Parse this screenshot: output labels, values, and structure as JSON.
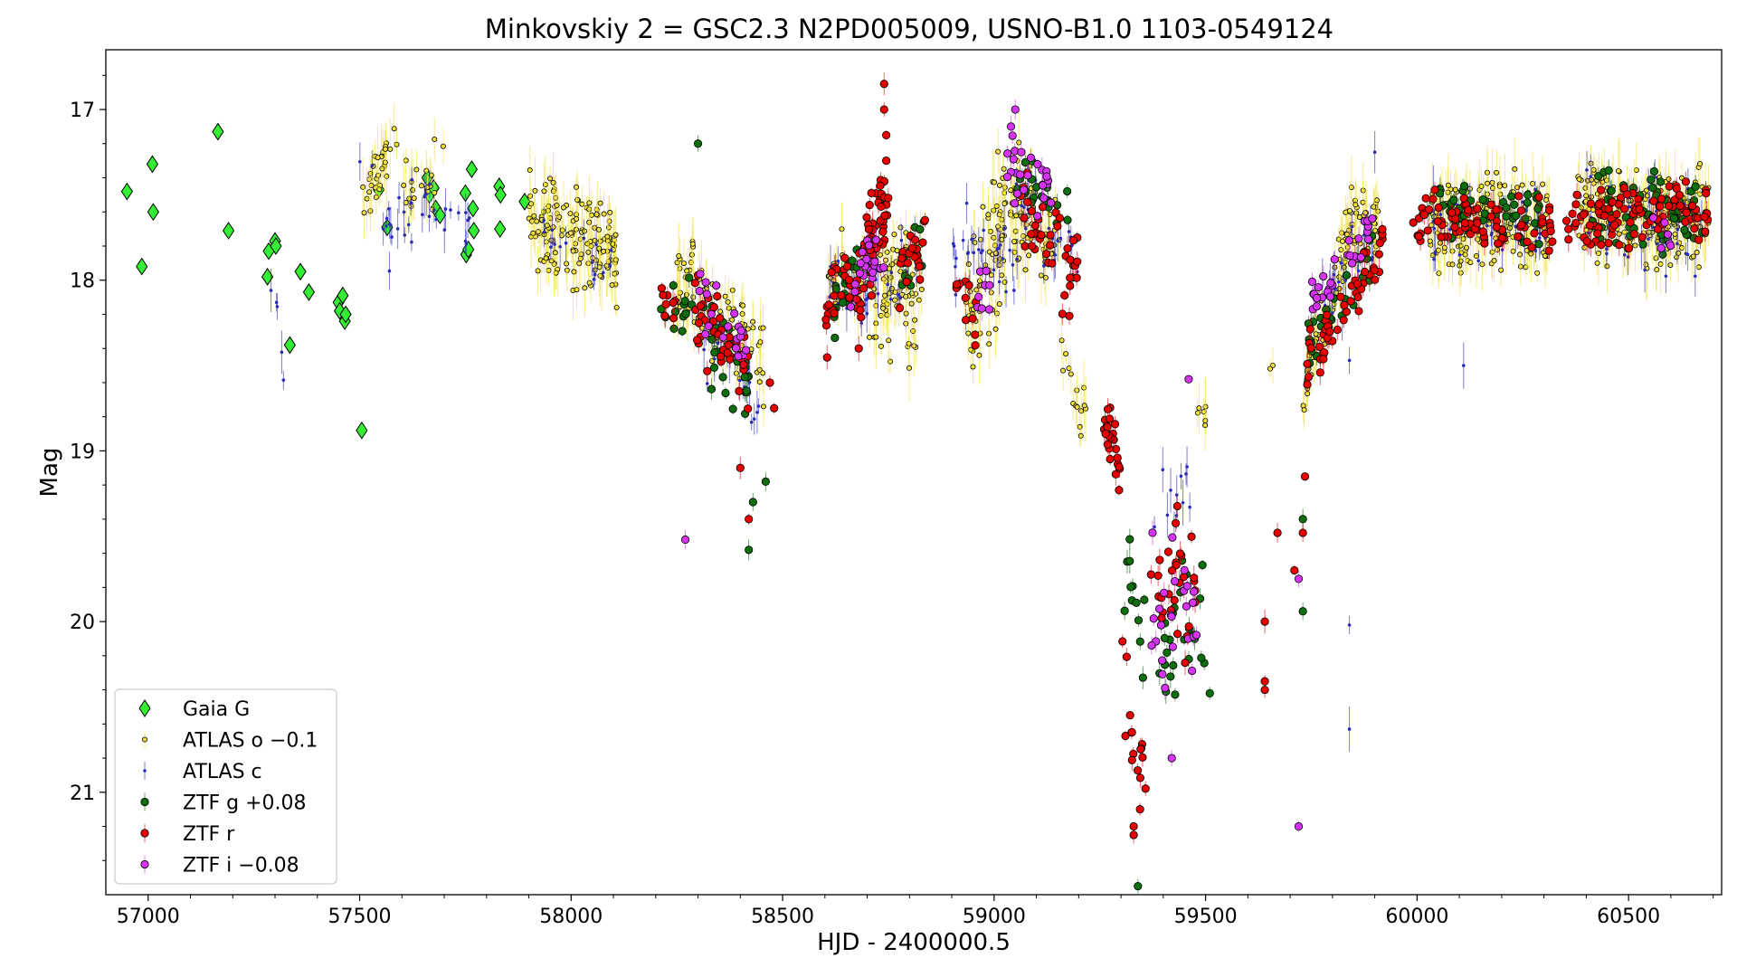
{
  "chart_data": {
    "type": "scatter",
    "title": "Minkovskiy 2 = GSC2.3 N2PD005009, USNO-B1.0 1103-0549124",
    "xlabel": "HJD - 2400000.5",
    "ylabel": "Mag",
    "xlim": [
      56900,
      60720
    ],
    "ylim": [
      21.6,
      16.65
    ],
    "y_inverted": true,
    "xticks": [
      57000,
      57500,
      58000,
      58500,
      59000,
      59500,
      60000,
      60500
    ],
    "xtick_labels": [
      "57000",
      "57500",
      "58000",
      "58500",
      "59000",
      "59500",
      "60000",
      "60500"
    ],
    "yticks": [
      17,
      18,
      19,
      20,
      21
    ],
    "ytick_labels": [
      "17",
      "18",
      "19",
      "20",
      "21"
    ],
    "grid": false,
    "legend_position": "lower-left",
    "series": [
      {
        "name": "Gaia G",
        "marker": "diamond",
        "color": "#33ee33",
        "points": [
          [
            56950,
            17.48
          ],
          [
            56985,
            17.92
          ],
          [
            57010,
            17.32
          ],
          [
            57012,
            17.6
          ],
          [
            57165,
            17.13
          ],
          [
            57190,
            17.71
          ],
          [
            57282,
            17.98
          ],
          [
            57285,
            17.83
          ],
          [
            57300,
            17.77
          ],
          [
            57302,
            17.8
          ],
          [
            57335,
            18.38
          ],
          [
            57360,
            17.95
          ],
          [
            57380,
            18.07
          ],
          [
            57450,
            18.13
          ],
          [
            57453,
            18.18
          ],
          [
            57460,
            18.09
          ],
          [
            57465,
            18.24
          ],
          [
            57467,
            18.2
          ],
          [
            57505,
            18.88
          ],
          [
            57545,
            17.47
          ],
          [
            57565,
            17.69
          ],
          [
            57660,
            17.4
          ],
          [
            57665,
            17.5
          ],
          [
            57675,
            17.46
          ],
          [
            57680,
            17.58
          ],
          [
            57690,
            17.62
          ],
          [
            57750,
            17.49
          ],
          [
            57752,
            17.85
          ],
          [
            57757,
            17.82
          ],
          [
            57765,
            17.35
          ],
          [
            57768,
            17.58
          ],
          [
            57770,
            17.71
          ],
          [
            57830,
            17.45
          ],
          [
            57832,
            17.7
          ],
          [
            57833,
            17.5
          ],
          [
            57890,
            17.54
          ]
        ]
      },
      {
        "name": "ATLAS o −0.1",
        "marker": "circle-small",
        "color": "#f2e03a",
        "segments": [
          {
            "x": [
              57500,
              57590
            ],
            "y": [
              17.55,
              17.15
            ],
            "spread": 0.2,
            "n": 30
          },
          {
            "x": [
              57600,
              57700
            ],
            "y": [
              17.5,
              17.35
            ],
            "spread": 0.25,
            "n": 20
          },
          {
            "x": [
              57900,
              58110
            ],
            "y": [
              17.65,
              17.85
            ],
            "spread": 0.35,
            "n": 150
          },
          {
            "x": [
              58250,
              58290
            ],
            "y": [
              18.15,
              17.9
            ],
            "spread": 0.35,
            "n": 30
          },
          {
            "x": [
              58290,
              58460
            ],
            "y": [
              18.1,
              18.5
            ],
            "spread": 0.3,
            "n": 60
          },
          {
            "x": [
              58600,
              58830
            ],
            "y": [
              18.0,
              17.9
            ],
            "spread": 0.3,
            "n": 70
          },
          {
            "x": [
              58700,
              58820
            ],
            "y": [
              18.1,
              18.3
            ],
            "spread": 0.35,
            "n": 40
          },
          {
            "x": [
              58930,
              59060
            ],
            "y": [
              18.2,
              17.6
            ],
            "spread": 0.5,
            "n": 80
          },
          {
            "x": [
              59000,
              59160
            ],
            "y": [
              17.5,
              17.8
            ],
            "spread": 0.35,
            "n": 60
          },
          {
            "x": [
              59150,
              59220
            ],
            "y": [
              18.3,
              18.9
            ],
            "spread": 0.25,
            "n": 15
          },
          {
            "x": [
              59480,
              59500
            ],
            "y": [
              18.8,
              18.8
            ],
            "spread": 0.08,
            "n": 6
          },
          {
            "x": [
              59650,
              59670
            ],
            "y": [
              18.5,
              18.6
            ],
            "spread": 0.1,
            "n": 2
          },
          {
            "x": [
              59730,
              59850
            ],
            "y": [
              18.6,
              17.6
            ],
            "spread": 0.25,
            "n": 60
          },
          {
            "x": [
              59850,
              59910
            ],
            "y": [
              17.6,
              17.65
            ],
            "spread": 0.25,
            "n": 30
          },
          {
            "x": [
              60030,
              60320
            ],
            "y": [
              17.65,
              17.65
            ],
            "spread": 0.35,
            "n": 180
          },
          {
            "x": [
              60380,
              60690
            ],
            "y": [
              17.6,
              17.65
            ],
            "spread": 0.35,
            "n": 200
          }
        ]
      },
      {
        "name": "ATLAS c",
        "marker": "point",
        "color": "#2b2bb8",
        "segments": [
          {
            "x": [
              57280,
              57320
            ],
            "y": [
              18.0,
              18.4
            ],
            "spread": 0.25,
            "n": 5
          },
          {
            "x": [
              57500,
              57580
            ],
            "y": [
              17.3,
              17.8
            ],
            "spread": 0.3,
            "n": 10
          },
          {
            "x": [
              57590,
              57760
            ],
            "y": [
              17.6,
              17.7
            ],
            "spread": 0.3,
            "n": 25
          },
          {
            "x": [
              57930,
              58100
            ],
            "y": [
              17.75,
              17.9
            ],
            "spread": 0.2,
            "n": 15
          },
          {
            "x": [
              58280,
              58450
            ],
            "y": [
              18.2,
              18.8
            ],
            "spread": 0.3,
            "n": 25
          },
          {
            "x": [
              58600,
              58830
            ],
            "y": [
              18.0,
              17.95
            ],
            "spread": 0.3,
            "n": 30
          },
          {
            "x": [
              58900,
              59060
            ],
            "y": [
              17.8,
              17.9
            ],
            "spread": 0.35,
            "n": 30
          },
          {
            "x": [
              59050,
              59200
            ],
            "y": [
              17.5,
              17.9
            ],
            "spread": 0.3,
            "n": 25
          },
          {
            "x": [
              59370,
              59470
            ],
            "y": [
              19.2,
              19.3
            ],
            "spread": 0.3,
            "n": 12
          },
          {
            "x": [
              59740,
              59900
            ],
            "y": [
              18.3,
              17.7
            ],
            "spread": 0.3,
            "n": 25
          },
          {
            "x": [
              60030,
              60320
            ],
            "y": [
              17.7,
              17.7
            ],
            "spread": 0.3,
            "n": 40
          },
          {
            "x": [
              60400,
              60690
            ],
            "y": [
              17.65,
              17.7
            ],
            "spread": 0.35,
            "n": 45
          }
        ],
        "points": [
          [
            60110,
            18.5
          ],
          [
            59840,
            20.02
          ],
          [
            59840,
            20.63
          ],
          [
            59840,
            18.47
          ],
          [
            60640,
            17.85
          ],
          [
            59900,
            17.25
          ]
        ]
      },
      {
        "name": "ZTF g +0.08",
        "marker": "circle",
        "color": "#0c6e0c",
        "segments": [
          {
            "x": [
              58210,
              58290
            ],
            "y": [
              18.25,
              18.1
            ],
            "spread": 0.2,
            "n": 12
          },
          {
            "x": [
              58300,
              58420
            ],
            "y": [
              18.3,
              18.65
            ],
            "spread": 0.3,
            "n": 25
          },
          {
            "x": [
              58620,
              58700
            ],
            "y": [
              18.1,
              17.95
            ],
            "spread": 0.25,
            "n": 20
          },
          {
            "x": [
              58780,
              58830
            ],
            "y": [
              18.0,
              17.8
            ],
            "spread": 0.3,
            "n": 12
          },
          {
            "x": [
              59050,
              59180
            ],
            "y": [
              17.4,
              17.6
            ],
            "spread": 0.2,
            "n": 20
          },
          {
            "x": [
              59300,
              59360
            ],
            "y": [
              19.6,
              20.1
            ],
            "spread": 0.35,
            "n": 12
          },
          {
            "x": [
              59370,
              59500
            ],
            "y": [
              20.1,
              19.9
            ],
            "spread": 0.5,
            "n": 25
          },
          {
            "x": [
              59740,
              59900
            ],
            "y": [
              18.4,
              17.8
            ],
            "spread": 0.2,
            "n": 30
          },
          {
            "x": [
              60050,
              60300
            ],
            "y": [
              17.6,
              17.65
            ],
            "spread": 0.2,
            "n": 50
          },
          {
            "x": [
              60400,
              60680
            ],
            "y": [
              17.55,
              17.65
            ],
            "spread": 0.25,
            "n": 60
          }
        ],
        "points": [
          [
            58300,
            17.2
          ],
          [
            58420,
            19.58
          ],
          [
            58430,
            19.3
          ],
          [
            58460,
            19.18
          ],
          [
            59340,
            21.55
          ],
          [
            59510,
            20.42
          ],
          [
            59730,
            19.94
          ],
          [
            59730,
            19.4
          ]
        ]
      },
      {
        "name": "ZTF r",
        "marker": "circle",
        "color": "#e60000",
        "segments": [
          {
            "x": [
              58210,
              58250
            ],
            "y": [
              18.1,
              18.2
            ],
            "spread": 0.15,
            "n": 8
          },
          {
            "x": [
              58290,
              58420
            ],
            "y": [
              18.2,
              18.55
            ],
            "spread": 0.3,
            "n": 40
          },
          {
            "x": [
              58600,
              58690
            ],
            "y": [
              18.2,
              18.0
            ],
            "spread": 0.3,
            "n": 30
          },
          {
            "x": [
              58690,
              58750
            ],
            "y": [
              17.9,
              17.6
            ],
            "spread": 0.35,
            "n": 50
          },
          {
            "x": [
              58760,
              58840
            ],
            "y": [
              18.0,
              17.7
            ],
            "spread": 0.25,
            "n": 20
          },
          {
            "x": [
              58910,
              58960
            ],
            "y": [
              18.0,
              18.3
            ],
            "spread": 0.3,
            "n": 12
          },
          {
            "x": [
              59060,
              59200
            ],
            "y": [
              17.6,
              18.0
            ],
            "spread": 0.35,
            "n": 40
          },
          {
            "x": [
              59260,
              59300
            ],
            "y": [
              18.8,
              19.1
            ],
            "spread": 0.2,
            "n": 25
          },
          {
            "x": [
              59300,
              59360
            ],
            "y": [
              20.2,
              21.0
            ],
            "spread": 0.4,
            "n": 15
          },
          {
            "x": [
              59370,
              59480
            ],
            "y": [
              19.7,
              19.8
            ],
            "spread": 0.55,
            "n": 30
          },
          {
            "x": [
              59740,
              59920
            ],
            "y": [
              18.5,
              17.8
            ],
            "spread": 0.2,
            "n": 50
          },
          {
            "x": [
              59990,
              60320
            ],
            "y": [
              17.65,
              17.65
            ],
            "spread": 0.2,
            "n": 80
          },
          {
            "x": [
              60350,
              60690
            ],
            "y": [
              17.65,
              17.6
            ],
            "spread": 0.2,
            "n": 100
          }
        ],
        "points": [
          [
            58740,
            16.85
          ],
          [
            58740,
            17.0
          ],
          [
            58745,
            17.15
          ],
          [
            58745,
            17.3
          ],
          [
            58680,
            18.4
          ],
          [
            58480,
            18.75
          ],
          [
            58470,
            18.6
          ],
          [
            58420,
            19.4
          ],
          [
            58400,
            19.1
          ],
          [
            59640,
            20.0
          ],
          [
            59640,
            20.35
          ],
          [
            59640,
            20.4
          ],
          [
            59670,
            19.48
          ],
          [
            59710,
            19.7
          ],
          [
            59730,
            19.48
          ],
          [
            59735,
            19.15
          ],
          [
            59330,
            21.25
          ],
          [
            59330,
            21.2
          ],
          [
            59345,
            21.1
          ]
        ]
      },
      {
        "name": "ZTF i −0.08",
        "marker": "circle",
        "color": "#d633f2",
        "segments": [
          {
            "x": [
              58300,
              58420
            ],
            "y": [
              18.1,
              18.4
            ],
            "spread": 0.25,
            "n": 20
          },
          {
            "x": [
              58660,
              58740
            ],
            "y": [
              18.1,
              17.8
            ],
            "spread": 0.2,
            "n": 20
          },
          {
            "x": [
              58960,
              58990
            ],
            "y": [
              18.05,
              18.05
            ],
            "spread": 0.2,
            "n": 8
          },
          {
            "x": [
              59030,
              59140
            ],
            "y": [
              17.3,
              17.5
            ],
            "spread": 0.25,
            "n": 25
          },
          {
            "x": [
              59370,
              59480
            ],
            "y": [
              19.7,
              20.1
            ],
            "spread": 0.6,
            "n": 25
          },
          {
            "x": [
              59750,
              59900
            ],
            "y": [
              18.1,
              17.7
            ],
            "spread": 0.15,
            "n": 30
          },
          {
            "x": [
              60550,
              60600
            ],
            "y": [
              17.6,
              17.8
            ],
            "spread": 0.2,
            "n": 6
          }
        ],
        "points": [
          [
            58270,
            19.52
          ],
          [
            59460,
            18.58
          ],
          [
            59420,
            20.8
          ],
          [
            59720,
            19.75
          ],
          [
            59720,
            21.2
          ],
          [
            59050,
            17.0
          ],
          [
            59040,
            17.1
          ]
        ]
      }
    ]
  }
}
